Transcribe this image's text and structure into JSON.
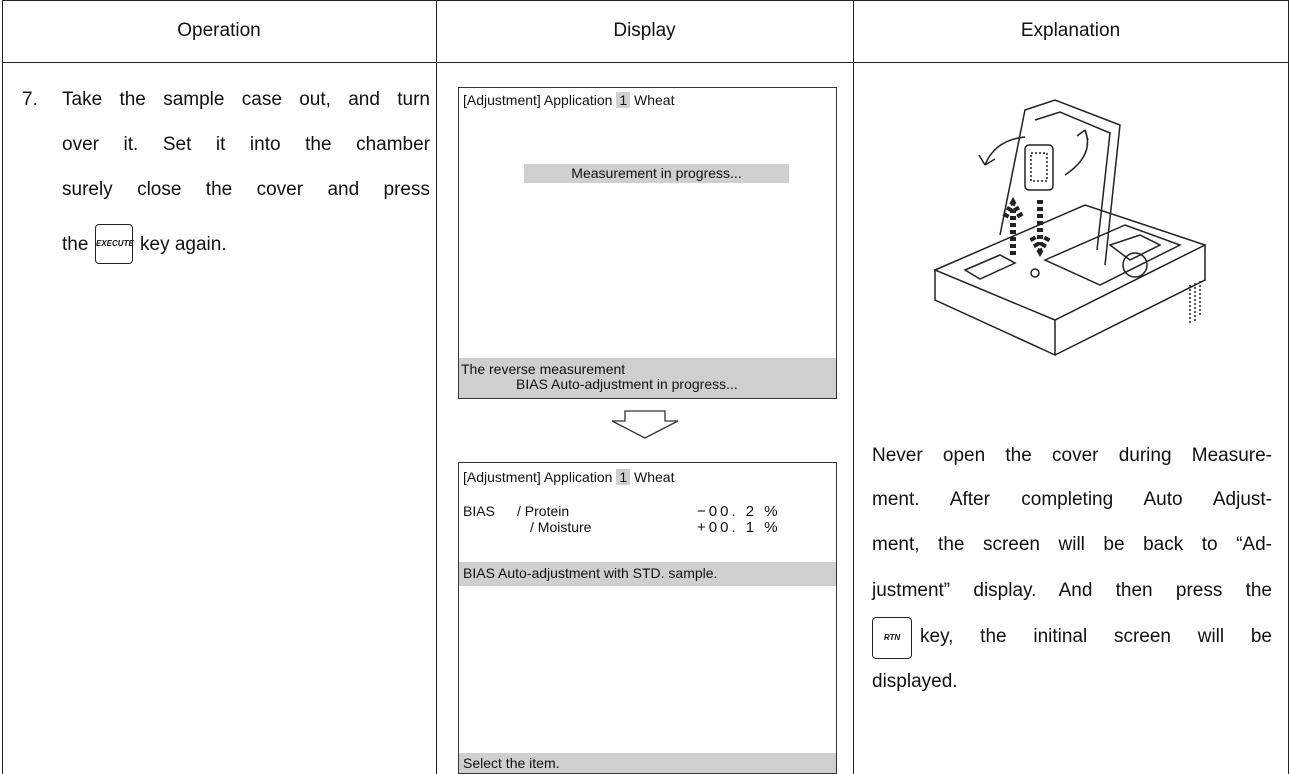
{
  "table": {
    "headers": [
      "Operation",
      "Display",
      "Explanation"
    ]
  },
  "operation": {
    "step": "7.",
    "lines": [
      "Take the sample case out, and turn",
      "over it. Set it into the chamber",
      "surely close the cover and press"
    ],
    "before_key": "the",
    "key": "EXECUTE",
    "after_key": "key again."
  },
  "display": {
    "screens": [
      {
        "title": "[Adjustment] Application",
        "app_number": "1",
        "app_name": "Wheat",
        "message": "Measurement in progress...",
        "footer": [
          "The reverse measurement",
          "BIAS Auto-adjustment in progress..."
        ]
      },
      {
        "title": "[Adjustment] Application",
        "app_number": "1",
        "app_name": "Wheat",
        "group": "BIAS",
        "items": [
          {
            "name": "/ Protein",
            "value": "−00. 2 %"
          },
          {
            "name": "/ Moisture",
            "value": "+00. 1 %"
          }
        ],
        "status": "BIAS Auto-adjustment with STD. sample.",
        "footer": "Select the item."
      }
    ]
  },
  "explanation": {
    "lines": [
      "Never open the cover during Measure-",
      "ment. After completing Auto Adjust-",
      "ment, the screen will be back to “Ad-",
      "justment” display. And then press the"
    ],
    "key": "RTN",
    "after_key": "key, the initinal screen will be",
    "last_line": "displayed."
  }
}
